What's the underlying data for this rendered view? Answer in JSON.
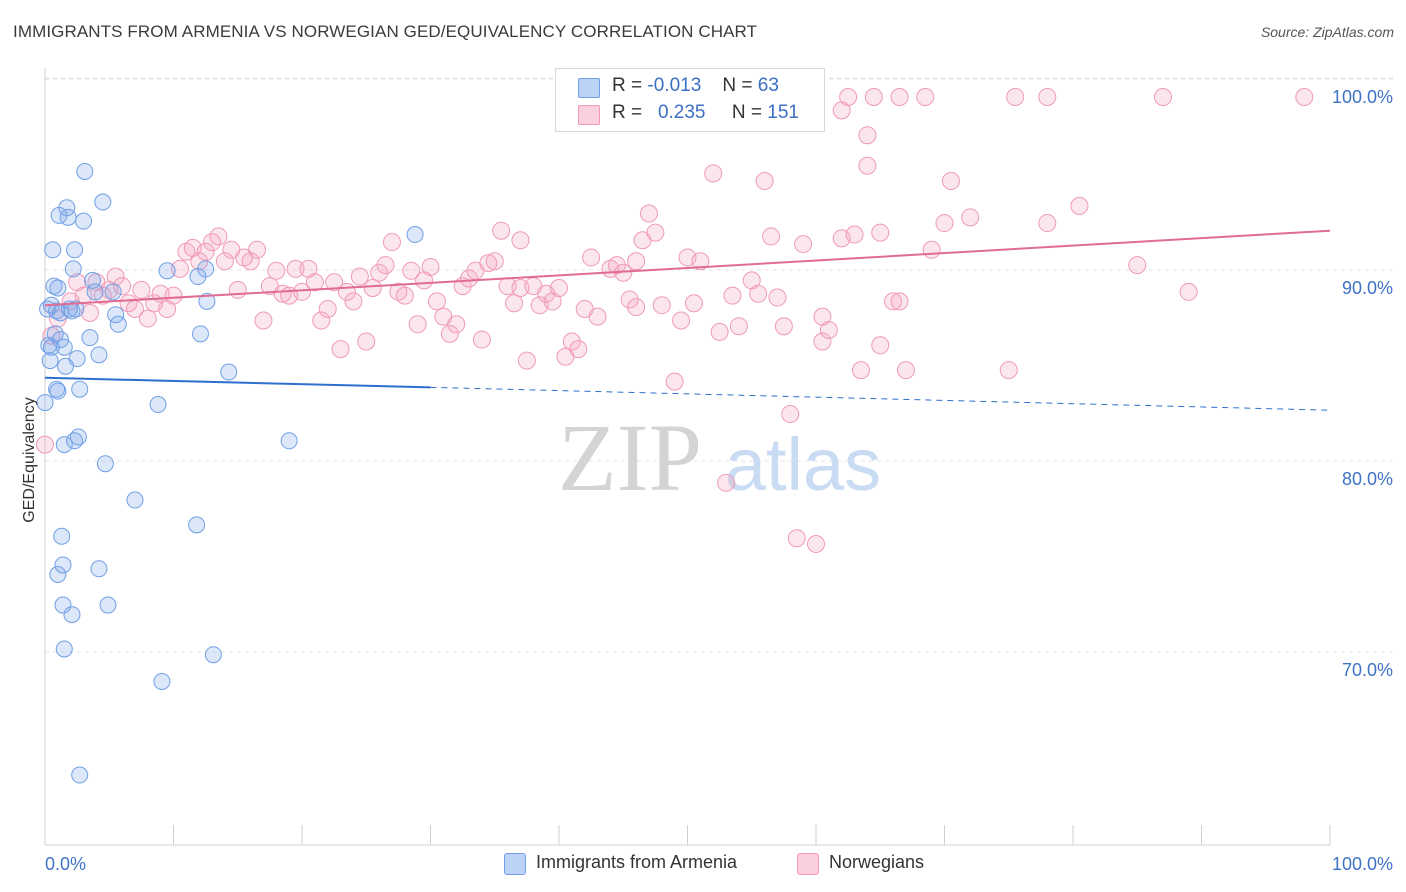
{
  "title": "IMMIGRANTS FROM ARMENIA VS NORWEGIAN GED/EQUIVALENCY CORRELATION CHART",
  "source": "Source: ZipAtlas.com",
  "watermark": {
    "zip": "ZIP",
    "atlas": "atlas"
  },
  "legend": {
    "armenia": {
      "r_label": "R =",
      "r_value": "-0.013",
      "n_label": "N =",
      "n_value": "63"
    },
    "norwegian": {
      "r_label": "R =",
      "r_value": "0.235",
      "n_label": "N =",
      "n_value": "151"
    }
  },
  "bottom_legend": {
    "armenia": "Immigrants from Armenia",
    "norwegian": "Norwegians"
  },
  "chart_data": {
    "type": "scatter",
    "title": "IMMIGRANTS FROM ARMENIA VS NORWEGIAN GED/EQUIVALENCY CORRELATION CHART",
    "xlabel": "",
    "ylabel": "GED/Equivalency",
    "xlim": [
      0,
      100
    ],
    "ylim": [
      60.5,
      102
    ],
    "x_tick_labels": [
      "0.0%",
      "100.0%"
    ],
    "y_ticks": [
      70,
      80,
      90,
      100
    ],
    "y_tick_labels": [
      "70.0%",
      "80.0%",
      "90.0%",
      "100.0%"
    ],
    "colors": {
      "armenia": "#6f9fe6",
      "armenia_line": "#2f6fce",
      "norwegian": "#f09ab6",
      "norwegian_line": "#e06b93",
      "tick_label": "#3f73c6"
    },
    "series": [
      {
        "name": "Immigrants from Armenia",
        "trend": {
          "x": [
            0,
            30
          ],
          "y": [
            85.3,
            84.8
          ],
          "dashed_to": [
            100,
            83.6
          ]
        },
        "points": [
          [
            0.2,
            88.9
          ],
          [
            0.3,
            87.0
          ],
          [
            0.4,
            86.2
          ],
          [
            0.5,
            89.1
          ],
          [
            0.6,
            92.0
          ],
          [
            0.7,
            90.1
          ],
          [
            0.8,
            87.6
          ],
          [
            0.9,
            88.8
          ],
          [
            1.0,
            90.0
          ],
          [
            1.1,
            93.8
          ],
          [
            1.2,
            88.7
          ],
          [
            0.9,
            84.7
          ],
          [
            1.3,
            77.0
          ],
          [
            1.5,
            81.8
          ],
          [
            1.6,
            85.9
          ],
          [
            1.7,
            94.2
          ],
          [
            1.8,
            93.7
          ],
          [
            2.1,
            88.8
          ],
          [
            2.2,
            91.0
          ],
          [
            2.3,
            92.0
          ],
          [
            2.4,
            88.9
          ],
          [
            2.5,
            86.3
          ],
          [
            2.6,
            82.2
          ],
          [
            2.7,
            84.7
          ],
          [
            3.0,
            93.5
          ],
          [
            3.1,
            96.1
          ],
          [
            3.5,
            87.4
          ],
          [
            3.7,
            90.4
          ],
          [
            3.9,
            89.8
          ],
          [
            4.2,
            86.5
          ],
          [
            4.5,
            94.5
          ],
          [
            4.7,
            80.8
          ],
          [
            4.9,
            73.4
          ],
          [
            5.3,
            89.8
          ],
          [
            5.5,
            88.6
          ],
          [
            5.7,
            88.1
          ],
          [
            7.0,
            78.9
          ],
          [
            8.8,
            83.9
          ],
          [
            9.1,
            69.4
          ],
          [
            9.5,
            90.9
          ],
          [
            11.8,
            77.6
          ],
          [
            11.9,
            90.6
          ],
          [
            12.1,
            87.6
          ],
          [
            12.5,
            91.0
          ],
          [
            12.6,
            89.3
          ],
          [
            14.3,
            85.6
          ],
          [
            19.0,
            82.0
          ],
          [
            28.8,
            92.8
          ],
          [
            1.0,
            75.0
          ],
          [
            1.4,
            73.4
          ],
          [
            1.5,
            71.1
          ],
          [
            2.1,
            72.9
          ],
          [
            1.4,
            75.5
          ],
          [
            4.2,
            75.3
          ],
          [
            13.1,
            70.8
          ],
          [
            2.7,
            64.5
          ],
          [
            0.5,
            86.9
          ],
          [
            1.2,
            87.3
          ],
          [
            1.9,
            88.9
          ],
          [
            2.3,
            82.0
          ],
          [
            1.0,
            84.6
          ],
          [
            0.0,
            84.0
          ],
          [
            1.5,
            86.9
          ]
        ]
      },
      {
        "name": "Norwegians",
        "trend": {
          "x": [
            0,
            100
          ],
          "y": [
            89.1,
            93.0
          ]
        },
        "points": [
          [
            0.0,
            81.8
          ],
          [
            0.5,
            87.5
          ],
          [
            1.0,
            88.4
          ],
          [
            2.0,
            89.3
          ],
          [
            2.5,
            90.3
          ],
          [
            3.0,
            89.6
          ],
          [
            3.5,
            88.7
          ],
          [
            4.0,
            90.3
          ],
          [
            4.5,
            89.6
          ],
          [
            5.0,
            89.9
          ],
          [
            5.5,
            90.6
          ],
          [
            6.0,
            90.1
          ],
          [
            6.5,
            89.2
          ],
          [
            7.0,
            88.9
          ],
          [
            7.5,
            89.9
          ],
          [
            8.0,
            88.4
          ],
          [
            8.5,
            89.2
          ],
          [
            9.0,
            89.7
          ],
          [
            9.5,
            88.9
          ],
          [
            10.0,
            89.6
          ],
          [
            10.5,
            91.0
          ],
          [
            11.0,
            91.9
          ],
          [
            11.5,
            92.1
          ],
          [
            12.0,
            91.4
          ],
          [
            12.5,
            91.9
          ],
          [
            13.0,
            92.4
          ],
          [
            13.5,
            92.7
          ],
          [
            14.0,
            91.4
          ],
          [
            14.5,
            92.0
          ],
          [
            15.0,
            89.9
          ],
          [
            15.5,
            91.6
          ],
          [
            16.0,
            91.4
          ],
          [
            16.5,
            92.0
          ],
          [
            17.0,
            88.3
          ],
          [
            17.5,
            90.1
          ],
          [
            18.0,
            90.9
          ],
          [
            18.5,
            89.7
          ],
          [
            19.0,
            89.6
          ],
          [
            19.5,
            91.0
          ],
          [
            20.0,
            89.8
          ],
          [
            20.5,
            91.0
          ],
          [
            21.0,
            90.3
          ],
          [
            21.5,
            88.3
          ],
          [
            22.0,
            88.9
          ],
          [
            22.5,
            90.3
          ],
          [
            23.0,
            86.8
          ],
          [
            23.5,
            89.8
          ],
          [
            24.0,
            89.3
          ],
          [
            24.5,
            90.6
          ],
          [
            25.0,
            87.2
          ],
          [
            25.5,
            90.0
          ],
          [
            26.0,
            90.8
          ],
          [
            26.5,
            91.2
          ],
          [
            27.0,
            92.4
          ],
          [
            27.5,
            89.8
          ],
          [
            28.0,
            89.6
          ],
          [
            28.5,
            90.9
          ],
          [
            29.0,
            88.1
          ],
          [
            29.5,
            90.4
          ],
          [
            30.0,
            91.1
          ],
          [
            30.5,
            89.3
          ],
          [
            31.0,
            88.5
          ],
          [
            31.5,
            87.6
          ],
          [
            32.0,
            88.1
          ],
          [
            32.5,
            90.1
          ],
          [
            33.0,
            90.5
          ],
          [
            33.5,
            90.9
          ],
          [
            34.0,
            87.3
          ],
          [
            34.5,
            91.3
          ],
          [
            35.0,
            91.4
          ],
          [
            35.5,
            93.0
          ],
          [
            36.0,
            90.1
          ],
          [
            36.5,
            89.2
          ],
          [
            37.0,
            90.0
          ],
          [
            37.5,
            86.2
          ],
          [
            38.0,
            90.1
          ],
          [
            38.5,
            89.1
          ],
          [
            39.0,
            89.7
          ],
          [
            39.5,
            89.3
          ],
          [
            40.0,
            90.0
          ],
          [
            40.5,
            86.4
          ],
          [
            41.0,
            87.2
          ],
          [
            41.5,
            86.8
          ],
          [
            42.0,
            88.9
          ],
          [
            42.5,
            91.6
          ],
          [
            43.0,
            88.5
          ],
          [
            44.0,
            91.0
          ],
          [
            44.5,
            91.2
          ],
          [
            45.0,
            90.8
          ],
          [
            45.5,
            89.4
          ],
          [
            46.0,
            91.4
          ],
          [
            46.5,
            92.5
          ],
          [
            47.0,
            93.9
          ],
          [
            47.5,
            92.9
          ],
          [
            48.0,
            89.1
          ],
          [
            49.0,
            85.1
          ],
          [
            49.5,
            88.3
          ],
          [
            50.0,
            91.6
          ],
          [
            50.5,
            89.2
          ],
          [
            51.0,
            91.4
          ],
          [
            52.0,
            96.0
          ],
          [
            52.5,
            87.7
          ],
          [
            53.0,
            79.8
          ],
          [
            53.5,
            89.6
          ],
          [
            54.0,
            88.0
          ],
          [
            55.0,
            90.4
          ],
          [
            55.5,
            89.7
          ],
          [
            56.0,
            95.6
          ],
          [
            56.5,
            92.7
          ],
          [
            57.0,
            89.5
          ],
          [
            57.5,
            88.0
          ],
          [
            58.0,
            83.4
          ],
          [
            58.5,
            76.9
          ],
          [
            59.0,
            92.3
          ],
          [
            60.0,
            76.6
          ],
          [
            60.5,
            87.2
          ],
          [
            61.0,
            87.8
          ],
          [
            62.0,
            92.6
          ],
          [
            63.0,
            92.8
          ],
          [
            63.5,
            85.7
          ],
          [
            64.0,
            96.4
          ],
          [
            65.0,
            92.9
          ],
          [
            66.0,
            89.3
          ],
          [
            66.5,
            89.3
          ],
          [
            67.0,
            85.7
          ],
          [
            69.0,
            92.0
          ],
          [
            70.0,
            93.4
          ],
          [
            70.5,
            95.6
          ],
          [
            72.0,
            93.7
          ],
          [
            75.0,
            85.7
          ],
          [
            78.0,
            93.4
          ],
          [
            80.5,
            94.3
          ],
          [
            85.0,
            91.2
          ],
          [
            89.0,
            89.8
          ],
          [
            98.0,
            100
          ],
          [
            87.0,
            100
          ],
          [
            78.0,
            100
          ],
          [
            75.5,
            100
          ],
          [
            60.0,
            100
          ],
          [
            57.5,
            100
          ],
          [
            62.5,
            100
          ],
          [
            64.5,
            100
          ],
          [
            66.5,
            100
          ],
          [
            68.5,
            100
          ],
          [
            62.0,
            99.3
          ],
          [
            64.0,
            98.0
          ],
          [
            60.5,
            88.5
          ],
          [
            65.0,
            87.0
          ],
          [
            46.0,
            89.0
          ],
          [
            37.0,
            92.5
          ]
        ]
      }
    ]
  }
}
